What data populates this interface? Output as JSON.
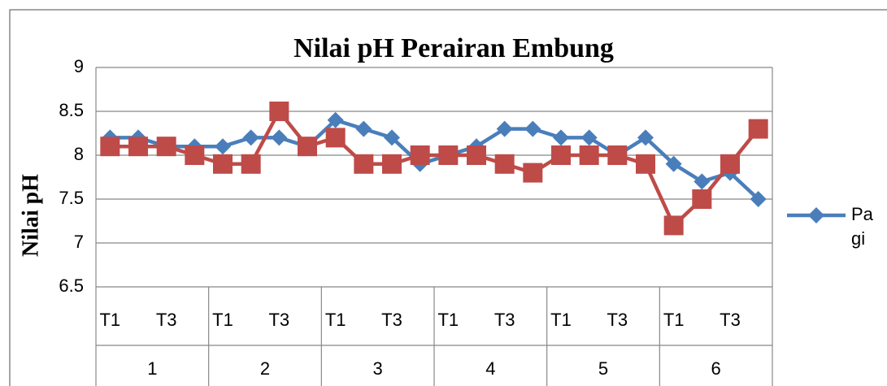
{
  "chart_data": {
    "type": "line",
    "title": "Nilai pH Perairan Embung",
    "y_label": "Nilai pH",
    "categories": [
      "T1",
      null,
      "T3",
      null,
      "T1",
      null,
      "T3",
      null,
      "T1",
      null,
      "T3",
      null,
      "T1",
      null,
      "T3",
      null,
      "T1",
      null,
      "T3",
      null,
      "T1",
      null,
      "T3",
      null
    ],
    "groups": [
      "1",
      "2",
      "3",
      "4",
      "5",
      "6"
    ],
    "series": [
      {
        "name": "Pagi",
        "color": "#4a7ebb",
        "marker": "diamond",
        "values": [
          8.2,
          8.2,
          8.1,
          8.1,
          8.1,
          8.2,
          8.2,
          8.1,
          8.4,
          8.3,
          8.2,
          7.9,
          8.0,
          8.1,
          8.3,
          8.3,
          8.2,
          8.2,
          8.0,
          8.2,
          7.9,
          7.7,
          7.8,
          7.5
        ]
      },
      {
        "color": "#be4b48",
        "marker": "square",
        "values": [
          8.1,
          8.1,
          8.1,
          8.0,
          7.9,
          7.9,
          8.5,
          8.1,
          8.2,
          7.9,
          7.9,
          8.0,
          8.0,
          8.0,
          7.9,
          7.8,
          8.0,
          8.0,
          8.0,
          7.9,
          7.2,
          7.5,
          7.9,
          8.3
        ]
      }
    ],
    "ylim": [
      6.5,
      9
    ],
    "yticks": [
      6.5,
      7,
      7.5,
      8,
      8.5,
      9
    ],
    "grid": true,
    "legend": "right"
  }
}
